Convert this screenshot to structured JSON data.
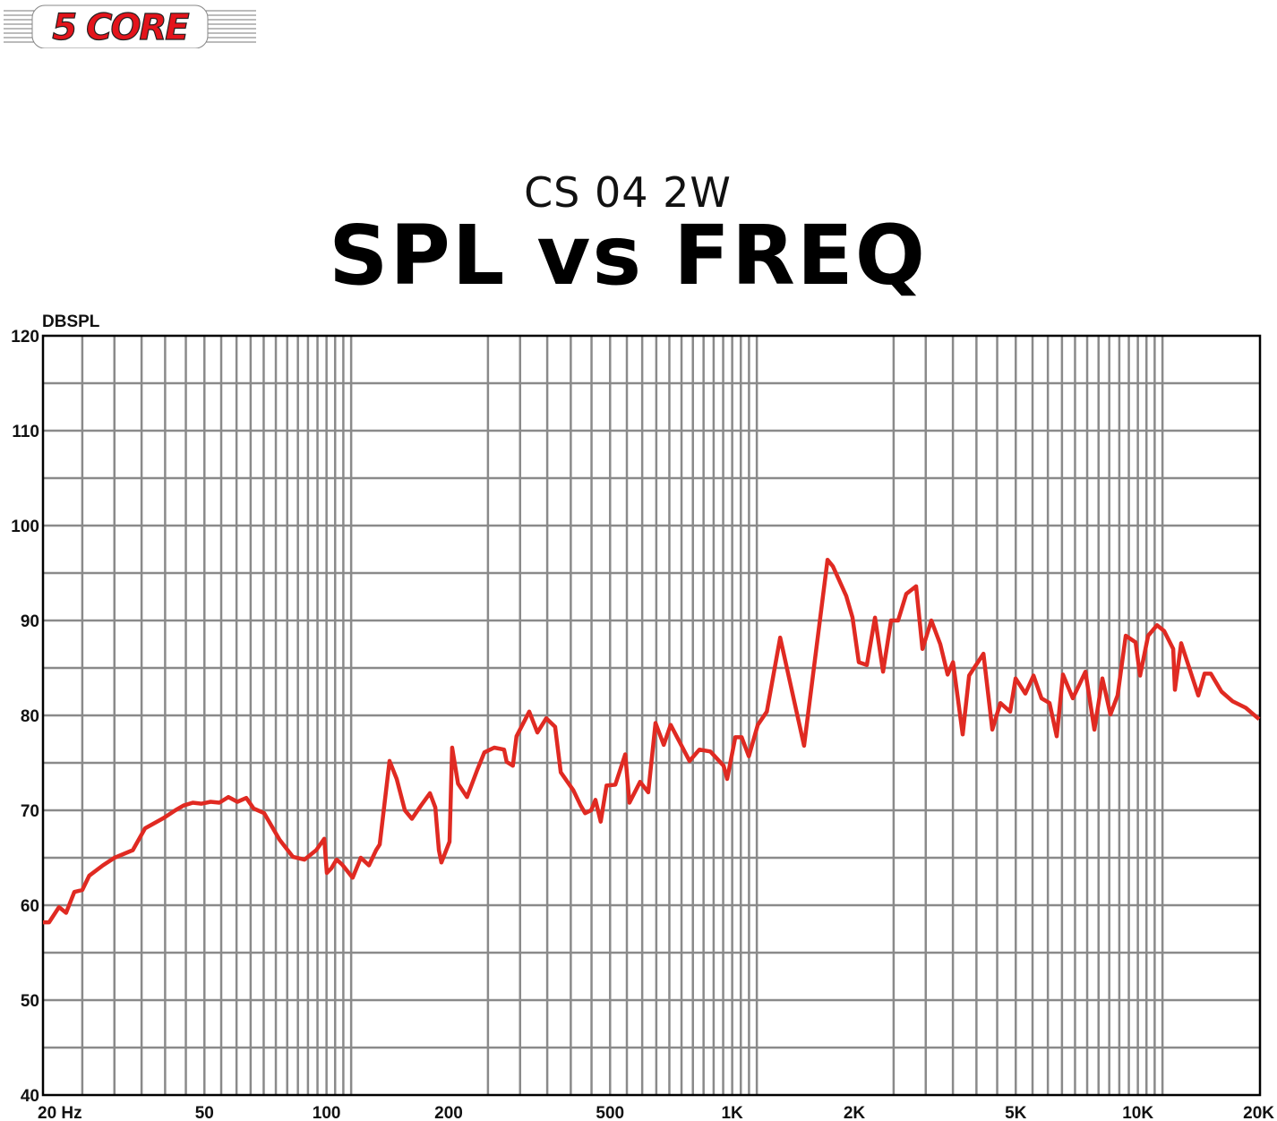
{
  "logo": {
    "text": "5 CORE"
  },
  "header": {
    "subtitle": "CS 04 2W",
    "title": "SPL vs FREQ"
  },
  "colors": {
    "curve": "#e02a22",
    "grid": "#8a8a8a",
    "axis": "#000000",
    "logo_red": "#e3141b"
  },
  "chart_data": {
    "type": "line",
    "title": "SPL vs FREQ",
    "subtitle": "CS 04 2W",
    "xlabel": "",
    "ylabel": "DBSPL",
    "xscale": "log",
    "xlim": [
      20,
      20000
    ],
    "ylim": [
      40,
      120
    ],
    "grid": true,
    "x_ticks": [
      {
        "value": 20,
        "label": "20 Hz"
      },
      {
        "value": 50,
        "label": "50"
      },
      {
        "value": 100,
        "label": "100"
      },
      {
        "value": 200,
        "label": "200"
      },
      {
        "value": 500,
        "label": "500"
      },
      {
        "value": 1000,
        "label": "1K"
      },
      {
        "value": 2000,
        "label": "2K"
      },
      {
        "value": 5000,
        "label": "5K"
      },
      {
        "value": 10000,
        "label": "10K"
      },
      {
        "value": 20000,
        "label": "20K"
      }
    ],
    "y_ticks": [
      {
        "value": 120,
        "label": "120"
      },
      {
        "value": 110,
        "label": "110"
      },
      {
        "value": 100,
        "label": "100"
      },
      {
        "value": 90,
        "label": "90"
      },
      {
        "value": 80,
        "label": "80"
      },
      {
        "value": 70,
        "label": "70"
      },
      {
        "value": 60,
        "label": "60"
      },
      {
        "value": 50,
        "label": "50"
      },
      {
        "value": 40,
        "label": "40"
      }
    ],
    "series": [
      {
        "name": "SPL",
        "freq": [
          20,
          20.7,
          21.9,
          22.8,
          23.9,
          25.0,
          26.0,
          28.1,
          30.0,
          33.3,
          35.7,
          39.7,
          42.4,
          44.4,
          46.8,
          49.2,
          51.8,
          54.4,
          57.3,
          60.3,
          63.4,
          66.1,
          70.2,
          76.6,
          82.6,
          88.2,
          94.3,
          98.7,
          100.2,
          102.8,
          105.9,
          109.2,
          116,
          121.5,
          127.2,
          132.5,
          135.2,
          143,
          148.9,
          156,
          162.4,
          170.9,
          179.8,
          185.4,
          189.2,
          191.9,
          201,
          204,
          211,
          222,
          235,
          245,
          259,
          274,
          278,
          288,
          294,
          316,
          331,
          348,
          366,
          378,
          406,
          423,
          434,
          449,
          460,
          474,
          490,
          515,
          545,
          558,
          593,
          621,
          647,
          678,
          705,
          785,
          830,
          883,
          952,
          972,
          1018,
          1055,
          1099,
          1156,
          1217,
          1313,
          1504,
          1718,
          1771,
          1910,
          1980,
          2052,
          2148,
          2249,
          2354,
          2464,
          2565,
          2686,
          2840,
          2944,
          3097,
          3258,
          3396,
          3501,
          3700,
          3837,
          4163,
          4378,
          4582,
          4844,
          4995,
          5281,
          5530,
          5787,
          6056,
          6309,
          6536,
          6914,
          7427,
          7815,
          8176,
          8556,
          8914,
          9335,
          9870,
          10125,
          10600,
          11150,
          11610,
          12220,
          12340,
          12790,
          14090,
          14600,
          15130,
          16080,
          17100,
          18450,
          19900
        ],
        "db": [
          58.2,
          58.2,
          59.8,
          59.2,
          61.4,
          61.6,
          63.1,
          64.2,
          65.0,
          65.8,
          68.1,
          69.2,
          70.0,
          70.5,
          70.8,
          70.7,
          70.9,
          70.8,
          71.4,
          70.9,
          71.3,
          70.2,
          69.7,
          66.9,
          65.1,
          64.8,
          65.8,
          67.0,
          63.4,
          63.9,
          64.8,
          64.3,
          62.9,
          65.0,
          64.2,
          65.8,
          66.4,
          75.2,
          73.3,
          70.0,
          69.1,
          70.5,
          71.8,
          70.3,
          65.8,
          64.5,
          66.7,
          76.6,
          72.8,
          71.4,
          74.2,
          76.1,
          76.6,
          76.4,
          75.1,
          74.7,
          77.8,
          80.4,
          78.2,
          79.7,
          78.8,
          74.0,
          72.1,
          70.5,
          69.7,
          70.0,
          71.1,
          68.8,
          72.6,
          72.7,
          75.9,
          70.8,
          73.0,
          71.9,
          79.2,
          76.9,
          79.0,
          75.2,
          76.4,
          76.2,
          74.7,
          73.3,
          77.7,
          77.7,
          75.7,
          79.0,
          80.4,
          88.2,
          76.8,
          96.4,
          95.7,
          92.6,
          90.3,
          85.6,
          85.3,
          90.3,
          84.6,
          90.0,
          90.0,
          92.8,
          93.6,
          87.0,
          90.0,
          87.5,
          84.3,
          85.6,
          78.0,
          84.2,
          86.5,
          78.5,
          81.3,
          80.4,
          83.9,
          82.3,
          84.2,
          81.8,
          81.3,
          77.8,
          84.3,
          81.8,
          84.6,
          78.5,
          83.9,
          80.1,
          82.1,
          88.4,
          87.7,
          84.2,
          88.4,
          89.5,
          88.9,
          87.0,
          82.7,
          87.6,
          82.1,
          84.4,
          84.4,
          82.5,
          81.5,
          80.8,
          79.6
        ]
      }
    ]
  }
}
